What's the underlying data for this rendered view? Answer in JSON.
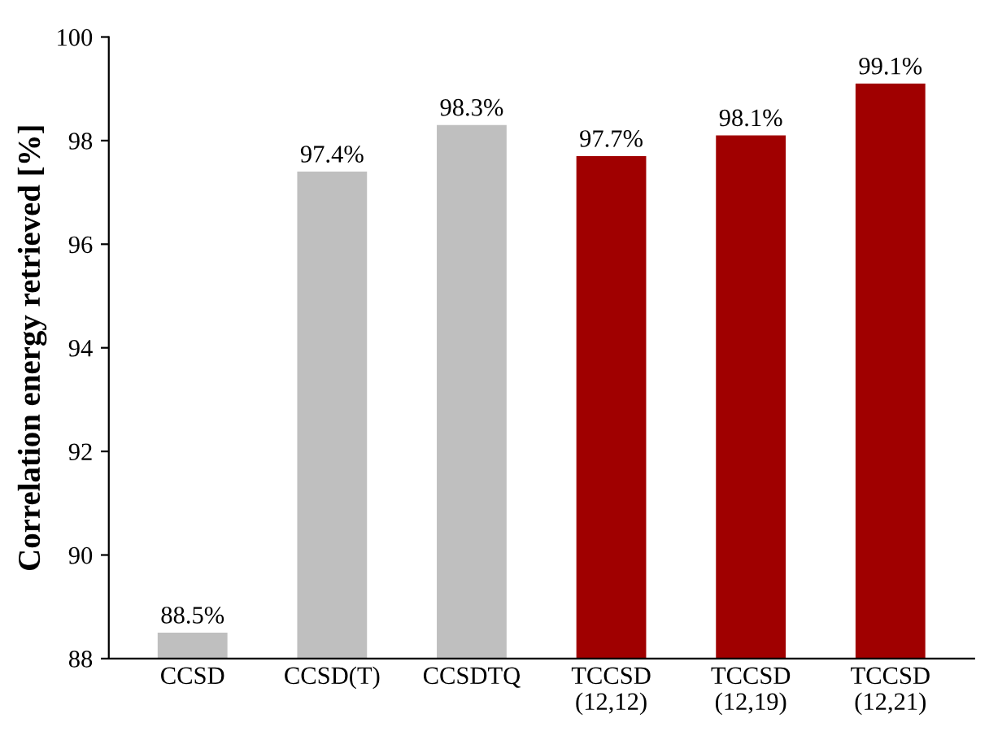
{
  "chart_data": {
    "type": "bar",
    "ylabel": "Correlation energy retrieved [%]",
    "categories": [
      "CCSD",
      "CCSD(T)",
      "CCSDTQ",
      "TCCSD\n(12,12)",
      "TCCSD\n(12,19)",
      "TCCSD\n(12,21)"
    ],
    "values": [
      88.5,
      97.4,
      98.3,
      97.7,
      98.1,
      99.1
    ],
    "colors": [
      "#bfbfbf",
      "#bfbfbf",
      "#bfbfbf",
      "#a00000",
      "#a00000",
      "#a00000"
    ],
    "value_labels": [
      "88.5%",
      "97.4%",
      "98.3%",
      "97.7%",
      "98.1%",
      "99.1%"
    ],
    "ylim": [
      88,
      100
    ],
    "yticks": [
      88,
      90,
      92,
      94,
      96,
      98,
      100
    ],
    "grid": false,
    "legend": false
  }
}
